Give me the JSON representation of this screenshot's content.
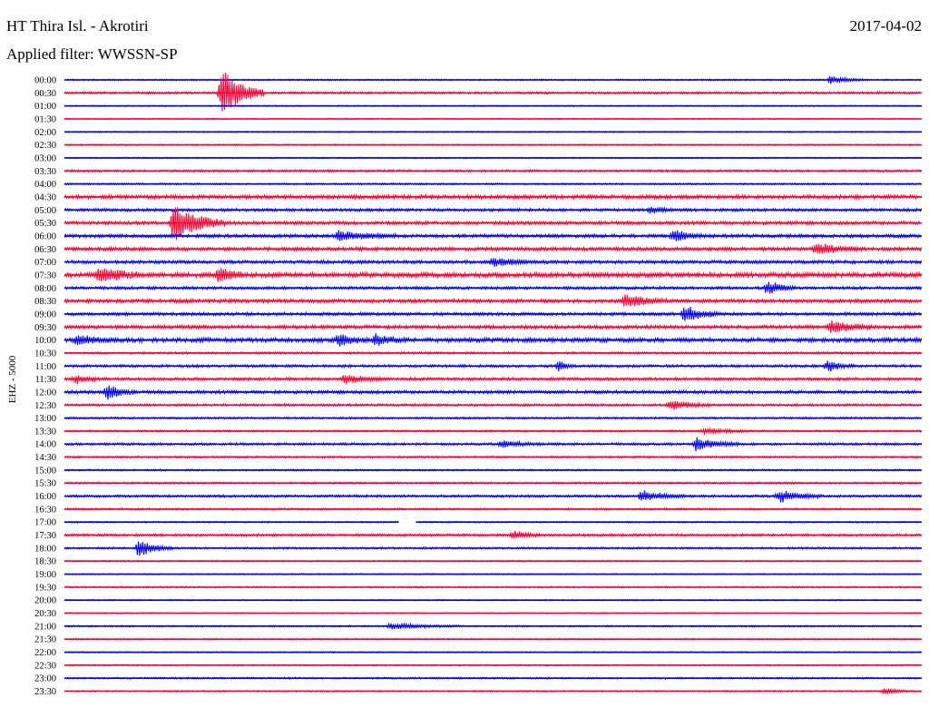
{
  "header": {
    "station": "HT Thira Isl. - Akrotiri",
    "date": "2017-04-02",
    "filter": "Applied filter: WWSSN-SP"
  },
  "channel_label": "EHZ - 5000",
  "colors": {
    "even_trace": "#0000ff",
    "odd_trace": "#ff0033",
    "text": "#000000"
  },
  "chart_data": {
    "type": "line",
    "subtype": "helicorder",
    "ylabel": "EHZ - 5000",
    "row_labels": [
      "00:00",
      "00:30",
      "01:00",
      "01:30",
      "02:00",
      "02:30",
      "03:00",
      "03:30",
      "04:00",
      "04:30",
      "05:00",
      "05:30",
      "06:00",
      "06:30",
      "07:00",
      "07:30",
      "08:00",
      "08:30",
      "09:00",
      "09:30",
      "10:00",
      "10:30",
      "11:00",
      "11:30",
      "12:00",
      "12:30",
      "13:00",
      "13:30",
      "14:00",
      "14:30",
      "15:00",
      "15:30",
      "16:00",
      "16:30",
      "17:00",
      "17:30",
      "18:00",
      "18:30",
      "19:00",
      "19:30",
      "20:00",
      "20:30",
      "21:00",
      "21:30",
      "22:00",
      "22:30",
      "23:00",
      "23:30"
    ],
    "x_range_minutes": [
      0,
      30
    ],
    "noise_level": [
      0.6,
      0.9,
      0.5,
      0.5,
      0.5,
      0.6,
      0.5,
      0.9,
      0.7,
      1.6,
      1.2,
      1.4,
      1.4,
      1.5,
      1.4,
      2.0,
      1.2,
      1.5,
      1.3,
      1.5,
      1.8,
      0.9,
      1.1,
      1.2,
      1.3,
      1.0,
      0.8,
      0.8,
      1.0,
      0.8,
      0.7,
      0.8,
      1.0,
      0.8,
      0.6,
      1.0,
      0.8,
      0.6,
      0.5,
      0.7,
      0.5,
      0.5,
      0.6,
      0.6,
      0.5,
      0.6,
      0.7,
      0.6
    ],
    "events": [
      {
        "row": 0,
        "minute": 26.8,
        "amplitude": 4,
        "duration": 1.2
      },
      {
        "row": 1,
        "minute": 5.5,
        "amplitude": 24,
        "duration": 1.5
      },
      {
        "row": 10,
        "minute": 20.5,
        "amplitude": 3,
        "duration": 1.0
      },
      {
        "row": 11,
        "minute": 3.8,
        "amplitude": 18,
        "duration": 1.8
      },
      {
        "row": 12,
        "minute": 9.6,
        "amplitude": 5,
        "duration": 2.0
      },
      {
        "row": 12,
        "minute": 21.3,
        "amplitude": 6,
        "duration": 1.0
      },
      {
        "row": 13,
        "minute": 26.3,
        "amplitude": 6,
        "duration": 1.5
      },
      {
        "row": 14,
        "minute": 15.0,
        "amplitude": 4,
        "duration": 1.5
      },
      {
        "row": 15,
        "minute": 1.2,
        "amplitude": 8,
        "duration": 1.5
      },
      {
        "row": 15,
        "minute": 5.4,
        "amplitude": 7,
        "duration": 1.0
      },
      {
        "row": 16,
        "minute": 24.6,
        "amplitude": 7,
        "duration": 1.0
      },
      {
        "row": 17,
        "minute": 19.6,
        "amplitude": 6,
        "duration": 1.5
      },
      {
        "row": 18,
        "minute": 21.7,
        "amplitude": 8,
        "duration": 1.2
      },
      {
        "row": 19,
        "minute": 26.8,
        "amplitude": 6,
        "duration": 1.5
      },
      {
        "row": 20,
        "minute": 0.4,
        "amplitude": 4,
        "duration": 1.5
      },
      {
        "row": 20,
        "minute": 9.6,
        "amplitude": 5,
        "duration": 1.0
      },
      {
        "row": 20,
        "minute": 10.9,
        "amplitude": 5,
        "duration": 1.0
      },
      {
        "row": 22,
        "minute": 17.3,
        "amplitude": 5,
        "duration": 0.5
      },
      {
        "row": 22,
        "minute": 26.7,
        "amplitude": 5,
        "duration": 1.0
      },
      {
        "row": 23,
        "minute": 0.4,
        "amplitude": 4,
        "duration": 1.0
      },
      {
        "row": 23,
        "minute": 9.8,
        "amplitude": 4,
        "duration": 1.5
      },
      {
        "row": 24,
        "minute": 1.5,
        "amplitude": 7,
        "duration": 1.0
      },
      {
        "row": 25,
        "minute": 21.2,
        "amplitude": 5,
        "duration": 1.5
      },
      {
        "row": 27,
        "minute": 22.4,
        "amplitude": 3,
        "duration": 1.5
      },
      {
        "row": 28,
        "minute": 22.1,
        "amplitude": 6,
        "duration": 1.5
      },
      {
        "row": 28,
        "minute": 15.3,
        "amplitude": 3,
        "duration": 1.5
      },
      {
        "row": 32,
        "minute": 20.2,
        "amplitude": 5,
        "duration": 1.5
      },
      {
        "row": 32,
        "minute": 25.0,
        "amplitude": 6,
        "duration": 1.5
      },
      {
        "row": 35,
        "minute": 15.7,
        "amplitude": 4,
        "duration": 1.0
      },
      {
        "row": 36,
        "minute": 2.6,
        "amplitude": 8,
        "duration": 1.2
      },
      {
        "row": 42,
        "minute": 11.4,
        "amplitude": 3,
        "duration": 2.5
      },
      {
        "row": 47,
        "minute": 28.7,
        "amplitude": 3,
        "duration": 1.0
      }
    ],
    "gap": {
      "row": 34,
      "minute_start": 11.7,
      "minute_end": 12.3
    }
  }
}
